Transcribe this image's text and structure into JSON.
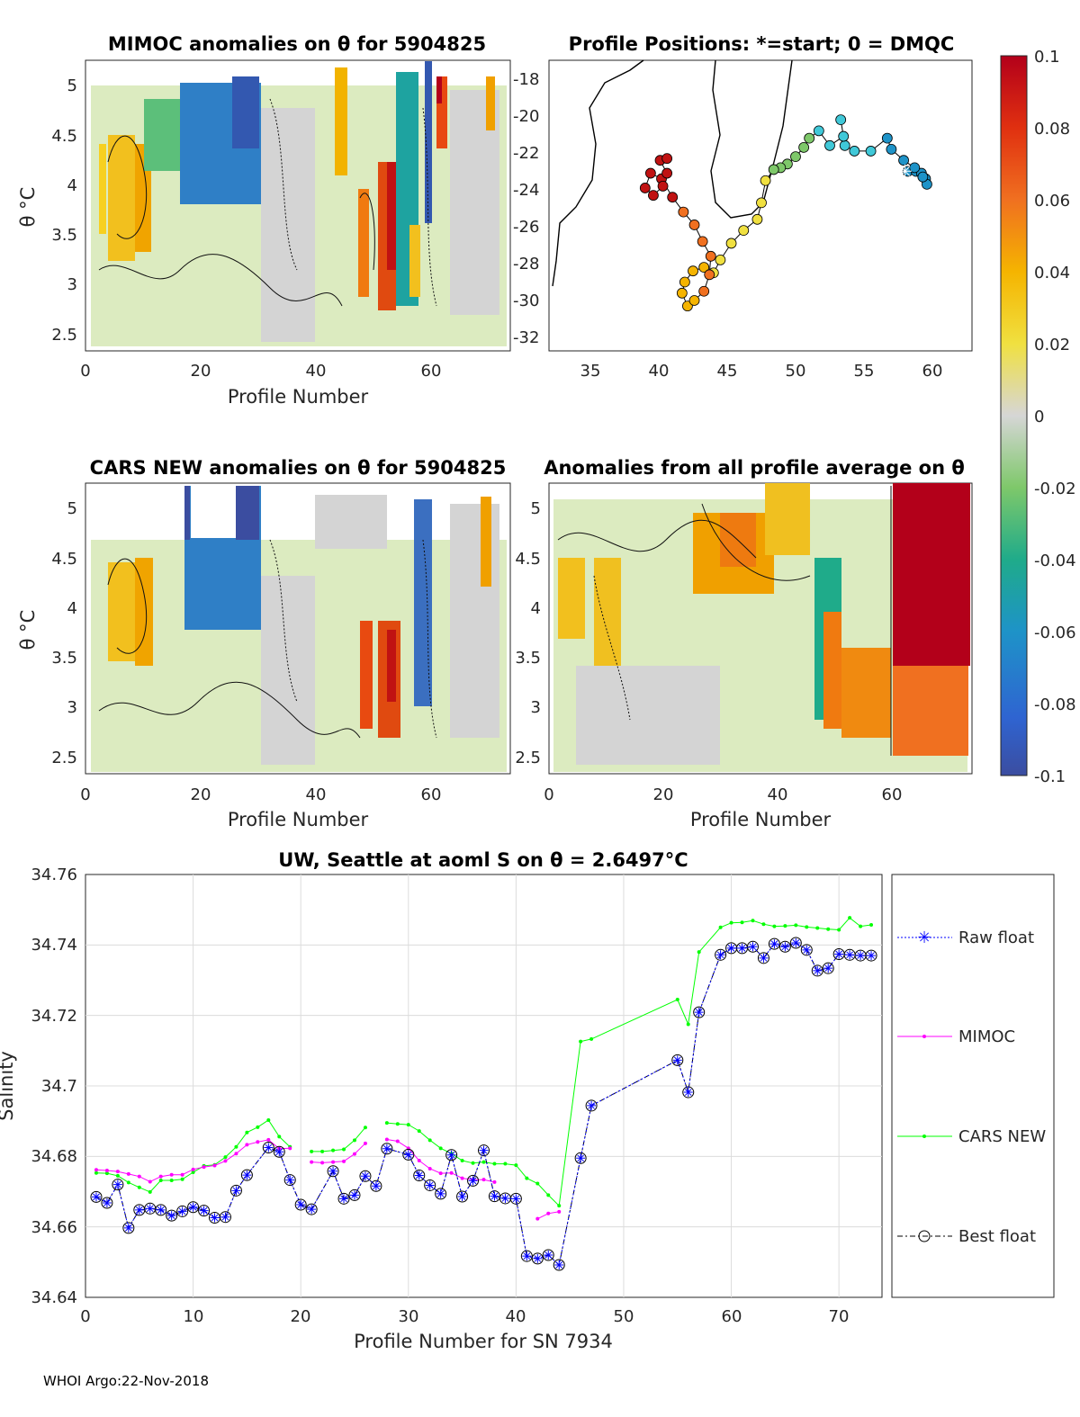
{
  "footer": "WHOI Argo:22-Nov-2018",
  "colors": {
    "raw": "#0000ff",
    "mimoc": "#ff00ff",
    "cars": "#00ff00",
    "best": "#000000",
    "grid": "#dcdcdc"
  },
  "panels": {
    "mimoc": {
      "title": "MIMOC anomalies on θ  for 5904825",
      "xlabel": "Profile Number",
      "ylabel": "θ °C",
      "xticks": [
        "0",
        "20",
        "40",
        "60"
      ],
      "yticks": [
        "2.5",
        "3",
        "3.5",
        "4",
        "4.5",
        "5"
      ]
    },
    "cars": {
      "title": "CARS NEW anomalies on θ for 5904825",
      "xlabel": "Profile Number",
      "ylabel": "θ °C",
      "xticks": [
        "0",
        "20",
        "40",
        "60"
      ],
      "yticks": [
        "2.5",
        "3",
        "3.5",
        "4",
        "4.5",
        "5"
      ]
    },
    "avg": {
      "title": "Anomalies from all profile average on θ",
      "xlabel": "Profile Number",
      "xticks": [
        "0",
        "20",
        "40",
        "60"
      ],
      "yticks": [
        "2.5",
        "3",
        "3.5",
        "4",
        "4.5",
        "5"
      ]
    },
    "map": {
      "title": "Profile Positions: *=start; 0 = DMQC",
      "xticks": [
        "35",
        "40",
        "45",
        "50",
        "55",
        "60"
      ],
      "yticks": [
        "-18",
        "-20",
        "-22",
        "-24",
        "-26",
        "-28",
        "-30",
        "-32"
      ]
    },
    "colorbar": {
      "ticks": [
        "0.1",
        "0.08",
        "0.06",
        "0.04",
        "0.02",
        "0",
        "-0.02",
        "-0.04",
        "-0.06",
        "-0.08",
        "-0.1"
      ]
    }
  },
  "chart_data": {
    "type": "line",
    "title": "UW, Seattle at aoml S on θ = 2.6497°C",
    "xlabel": "Profile Number for SN 7934",
    "ylabel": "Salinity",
    "xlim": [
      0,
      74
    ],
    "ylim": [
      34.64,
      34.76
    ],
    "xticks": [
      "0",
      "10",
      "20",
      "30",
      "40",
      "50",
      "60",
      "70"
    ],
    "yticks": [
      "34.76",
      "34.74",
      "34.72",
      "34.7",
      "34.68",
      "34.66",
      "34.64"
    ],
    "legend": [
      "Raw float",
      "MIMOC",
      "CARS NEW",
      "Best float"
    ],
    "series": [
      {
        "name": "Raw float",
        "x": [
          1,
          2,
          3,
          4,
          5,
          6,
          7,
          8,
          9,
          10,
          11,
          12,
          13,
          14,
          15,
          17,
          18,
          19,
          20,
          21,
          23,
          24,
          25,
          26,
          27,
          28,
          30,
          31,
          32,
          33,
          34,
          35,
          36,
          37,
          38,
          39,
          40,
          41,
          42,
          43,
          44,
          46,
          47,
          55,
          56,
          57,
          59,
          60,
          61,
          62,
          63,
          64,
          65,
          66,
          67,
          68,
          69,
          70,
          71,
          72,
          73
        ],
        "values": [
          34.6685,
          34.6668,
          34.672,
          34.6597,
          34.6648,
          34.6652,
          34.6648,
          34.6632,
          34.6644,
          34.6656,
          34.6646,
          34.6626,
          34.6628,
          34.6703,
          34.6747,
          34.6825,
          34.6813,
          34.6733,
          34.6663,
          34.665,
          34.6758,
          34.668,
          34.669,
          34.6744,
          34.6716,
          34.6822,
          34.6805,
          34.6746,
          34.6718,
          34.6694,
          34.6804,
          34.6686,
          34.6731,
          34.6817,
          34.6687,
          34.6681,
          34.668,
          34.6517,
          34.651,
          34.652,
          34.6492,
          34.6795,
          34.6944,
          34.7073,
          34.6982,
          34.7209,
          34.7372,
          34.7391,
          34.7391,
          34.7395,
          34.7363,
          34.7403,
          34.7395,
          34.7406,
          34.7386,
          34.7327,
          34.7334,
          34.7374,
          34.7372,
          34.737,
          34.737
        ]
      },
      {
        "name": "MIMOC",
        "x": [
          1,
          2,
          3,
          4,
          5,
          6,
          7,
          8,
          9,
          10,
          11,
          12,
          13,
          14,
          15,
          16,
          17,
          18,
          19,
          null,
          21,
          22,
          23,
          24,
          25,
          26,
          null,
          28,
          29,
          30,
          31,
          32,
          33,
          34,
          35,
          36,
          37,
          38,
          null,
          42,
          43,
          44
        ],
        "values": [
          34.6762,
          34.676,
          34.6757,
          34.675,
          34.6743,
          34.6728,
          34.6743,
          34.6748,
          34.6748,
          34.6763,
          34.677,
          34.6774,
          34.6787,
          34.6808,
          34.6833,
          34.6841,
          34.6847,
          34.6822,
          34.6823,
          null,
          34.6784,
          34.6782,
          34.6784,
          34.6786,
          34.6807,
          34.6837,
          null,
          34.6848,
          34.6843,
          34.6823,
          34.6788,
          34.6765,
          34.6752,
          34.6753,
          34.6738,
          34.6734,
          34.6734,
          34.6727,
          null,
          34.6623,
          34.6638,
          34.6643
        ]
      },
      {
        "name": "CARS NEW",
        "x": [
          1,
          2,
          3,
          4,
          5,
          6,
          7,
          8,
          9,
          10,
          11,
          12,
          13,
          14,
          15,
          16,
          17,
          18,
          19,
          null,
          21,
          22,
          23,
          24,
          25,
          26,
          null,
          28,
          29,
          30,
          31,
          32,
          33,
          34,
          35,
          36,
          37,
          38,
          39,
          40,
          41,
          42,
          43,
          44,
          46,
          47,
          55,
          56,
          57,
          59,
          60,
          61,
          62,
          63,
          64,
          65,
          66,
          67,
          68,
          69,
          70,
          71,
          72,
          73
        ],
        "values": [
          34.6753,
          34.6752,
          34.6745,
          34.6726,
          34.6712,
          34.6699,
          34.6732,
          34.6732,
          34.6735,
          34.6755,
          34.6773,
          34.6776,
          34.6798,
          34.6827,
          34.6868,
          34.6883,
          34.6903,
          34.6856,
          34.6827,
          null,
          34.6814,
          34.6814,
          34.6817,
          34.682,
          34.6846,
          34.6882,
          null,
          34.6895,
          34.6892,
          34.689,
          34.6872,
          34.6846,
          34.6823,
          34.6808,
          34.6788,
          34.6781,
          34.6784,
          34.6779,
          34.6779,
          34.6775,
          34.6738,
          34.6723,
          34.669,
          34.666,
          34.7126,
          34.7133,
          34.7245,
          34.7175,
          34.738,
          34.745,
          34.7463,
          34.7464,
          34.7469,
          34.7459,
          34.7453,
          34.7454,
          34.7456,
          34.7451,
          34.7448,
          34.7445,
          34.7443,
          34.7477,
          34.7453,
          34.7457
        ]
      },
      {
        "name": "Best float",
        "x": [
          1,
          2,
          3,
          4,
          5,
          6,
          7,
          8,
          9,
          10,
          11,
          12,
          13,
          14,
          15,
          17,
          18,
          19,
          20,
          21,
          23,
          24,
          25,
          26,
          27,
          28,
          30,
          31,
          32,
          33,
          34,
          35,
          36,
          37,
          38,
          39,
          40,
          41,
          42,
          43,
          44,
          46,
          47,
          55,
          56,
          57,
          59,
          60,
          61,
          62,
          63,
          64,
          65,
          66,
          67,
          68,
          69,
          70,
          71,
          72,
          73
        ],
        "values": [
          34.6685,
          34.6668,
          34.672,
          34.6597,
          34.6648,
          34.6652,
          34.6648,
          34.6632,
          34.6644,
          34.6656,
          34.6646,
          34.6626,
          34.6628,
          34.6703,
          34.6747,
          34.6825,
          34.6813,
          34.6733,
          34.6663,
          34.665,
          34.6758,
          34.668,
          34.669,
          34.6744,
          34.6716,
          34.6822,
          34.6805,
          34.6746,
          34.6718,
          34.6694,
          34.6804,
          34.6686,
          34.6731,
          34.6817,
          34.6687,
          34.6681,
          34.668,
          34.6517,
          34.651,
          34.652,
          34.6492,
          34.6795,
          34.6944,
          34.7073,
          34.6982,
          34.7209,
          34.7372,
          34.7391,
          34.7391,
          34.7395,
          34.7363,
          34.7403,
          34.7395,
          34.7406,
          34.7386,
          34.7327,
          34.7334,
          34.7374,
          34.7372,
          34.737,
          34.737
        ]
      }
    ]
  }
}
